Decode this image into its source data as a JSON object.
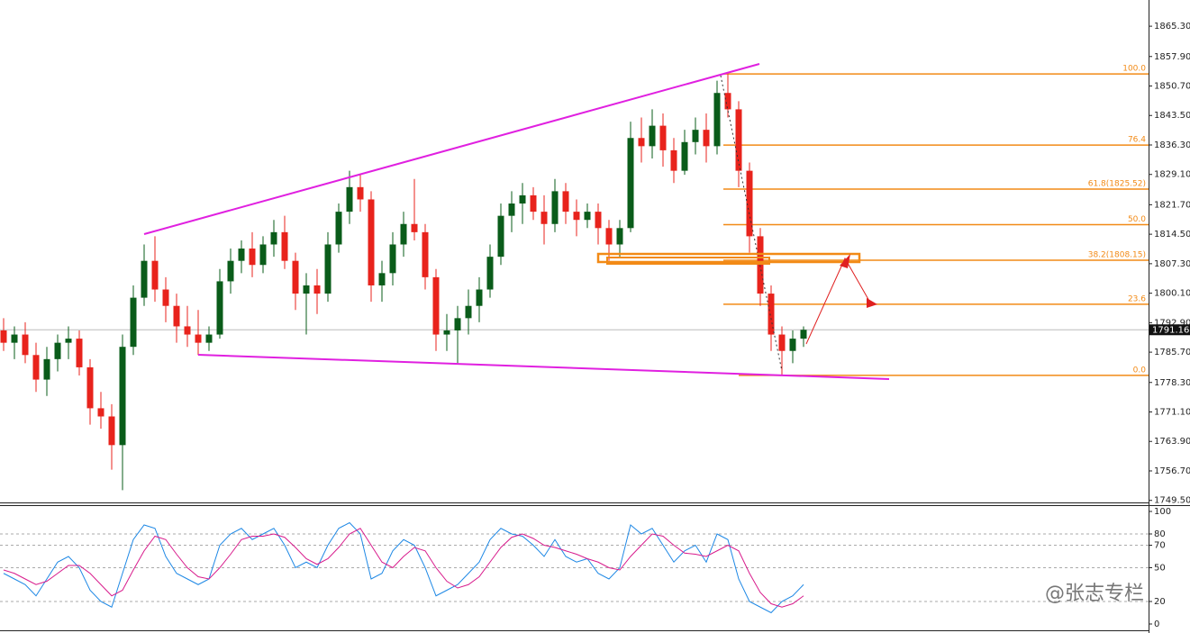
{
  "chart_data": [
    {
      "type": "candlestick",
      "open": [
        1791,
        1788,
        1790,
        1785,
        1779,
        1784,
        1788,
        1789,
        1782,
        1772,
        1770,
        1763,
        1787,
        1799,
        1808,
        1801,
        1797,
        1792,
        1790,
        1788,
        1790,
        1803,
        1808,
        1811,
        1807,
        1812,
        1815,
        1808,
        1800,
        1802,
        1800,
        1812,
        1820,
        1826,
        1823,
        1802,
        1805,
        1812,
        1817,
        1815,
        1804,
        1790,
        1791,
        1794,
        1797,
        1801,
        1809,
        1819,
        1822,
        1824,
        1820,
        1817,
        1825,
        1820,
        1818,
        1820,
        1816,
        1812,
        1816,
        1838,
        1836,
        1841,
        1835,
        1830,
        1837,
        1840,
        1836,
        1849,
        1845,
        1830,
        1814,
        1800,
        1790,
        1786,
        1789
      ],
      "high": [
        1794,
        1792,
        1793,
        1788,
        1787,
        1790,
        1792,
        1791,
        1784,
        1776,
        1773,
        1790,
        1802,
        1812,
        1814,
        1804,
        1800,
        1797,
        1796,
        1792,
        1806,
        1811,
        1813,
        1815,
        1814,
        1818,
        1819,
        1810,
        1805,
        1806,
        1815,
        1822,
        1830,
        1829,
        1825,
        1808,
        1815,
        1820,
        1828,
        1817,
        1806,
        1795,
        1797,
        1801,
        1804,
        1812,
        1822,
        1825,
        1827,
        1826,
        1824,
        1828,
        1827,
        1823,
        1822,
        1822,
        1818,
        1818,
        1842,
        1843,
        1845,
        1844,
        1838,
        1840,
        1843,
        1844,
        1852,
        1853.6,
        1847,
        1832,
        1816,
        1802,
        1792,
        1791,
        1792
      ],
      "low": [
        1786,
        1784,
        1783,
        1776,
        1775,
        1781,
        1784,
        1780,
        1768,
        1767,
        1757,
        1752,
        1785,
        1797,
        1798,
        1793,
        1788,
        1787,
        1785,
        1786,
        1789,
        1800,
        1805,
        1804,
        1805,
        1809,
        1806,
        1796,
        1790,
        1795,
        1798,
        1810,
        1817,
        1820,
        1798,
        1798,
        1802,
        1809,
        1813,
        1801,
        1786,
        1786,
        1783,
        1790,
        1793,
        1799,
        1807,
        1815,
        1817,
        1818,
        1812,
        1815,
        1817,
        1814,
        1816,
        1812,
        1808,
        1809,
        1815,
        1832,
        1833,
        1831,
        1827,
        1829,
        1834,
        1832,
        1834,
        1843,
        1826,
        1810,
        1797,
        1786,
        1780,
        1783,
        1787
      ],
      "close": [
        1788,
        1790,
        1785,
        1779,
        1784,
        1788,
        1789,
        1782,
        1772,
        1770,
        1763,
        1787,
        1799,
        1808,
        1801,
        1797,
        1792,
        1790,
        1788,
        1790,
        1803,
        1808,
        1811,
        1807,
        1812,
        1815,
        1808,
        1800,
        1802,
        1800,
        1812,
        1820,
        1826,
        1823,
        1802,
        1805,
        1812,
        1817,
        1815,
        1804,
        1790,
        1791,
        1794,
        1797,
        1801,
        1809,
        1819,
        1822,
        1824,
        1820,
        1817,
        1825,
        1820,
        1818,
        1820,
        1816,
        1812,
        1816,
        1838,
        1836,
        1841,
        1835,
        1830,
        1837,
        1840,
        1836,
        1849,
        1845,
        1830,
        1814,
        1800,
        1790,
        1786,
        1789,
        1791.16
      ],
      "up_color": "#0a5c1a",
      "down_color": "#e8231c",
      "ylim": [
        1749,
        1871.7
      ],
      "yticks": [
        {
          "value": 1749.5,
          "label": "1749.50"
        },
        {
          "value": 1756.7,
          "label": "1756.70"
        },
        {
          "value": 1763.9,
          "label": "1763.90"
        },
        {
          "value": 1771.1,
          "label": "1771.10"
        },
        {
          "value": 1778.3,
          "label": "1778.30"
        },
        {
          "value": 1785.7,
          "label": "1785.70"
        },
        {
          "value": 1792.9,
          "label": "1792.90"
        },
        {
          "value": 1800.1,
          "label": "1800.10"
        },
        {
          "value": 1807.3,
          "label": "1807.30"
        },
        {
          "value": 1814.5,
          "label": "1814.50"
        },
        {
          "value": 1821.7,
          "label": "1821.70"
        },
        {
          "value": 1829.1,
          "label": "1829.10"
        },
        {
          "value": 1836.3,
          "label": "1836.30"
        },
        {
          "value": 1843.5,
          "label": "1843.50"
        },
        {
          "value": 1850.7,
          "label": "1850.70"
        },
        {
          "value": 1857.9,
          "label": "1857.90"
        },
        {
          "value": 1865.3,
          "label": "1865.30"
        }
      ],
      "last_price": 1791.16,
      "fib_color": "#f28a16",
      "fib_levels": [
        {
          "ratio": 100,
          "label": "100.0",
          "price": 1853.63
        },
        {
          "ratio": 76.4,
          "label": "76.4",
          "price": 1836.26
        },
        {
          "ratio": 61.8,
          "label": "61.8(1825.52)",
          "price": 1825.52
        },
        {
          "ratio": 50,
          "label": "50.0",
          "price": 1816.83
        },
        {
          "ratio": 38.2,
          "label": "38.2(1808.15)",
          "price": 1808.15
        },
        {
          "ratio": 23.6,
          "label": "23.6",
          "price": 1797.4
        },
        {
          "ratio": 0,
          "label": "0.0",
          "price": 1780.03
        }
      ]
    },
    {
      "type": "line",
      "series": [
        {
          "color": "#1e88e5",
          "values": [
            45,
            40,
            35,
            25,
            40,
            55,
            60,
            50,
            30,
            20,
            15,
            45,
            75,
            88,
            85,
            60,
            45,
            40,
            35,
            40,
            70,
            80,
            85,
            75,
            80,
            85,
            70,
            50,
            55,
            50,
            70,
            85,
            90,
            80,
            40,
            45,
            65,
            75,
            70,
            50,
            25,
            30,
            35,
            45,
            55,
            75,
            85,
            80,
            78,
            70,
            60,
            75,
            60,
            55,
            58,
            45,
            40,
            50,
            88,
            80,
            85,
            70,
            55,
            65,
            70,
            55,
            80,
            75,
            40,
            20,
            15,
            10,
            20,
            25,
            35
          ]
        },
        {
          "color": "#d81b8c",
          "values": [
            48,
            45,
            40,
            35,
            38,
            45,
            52,
            52,
            45,
            35,
            25,
            30,
            48,
            65,
            78,
            75,
            62,
            50,
            42,
            40,
            50,
            62,
            75,
            78,
            78,
            80,
            77,
            68,
            58,
            53,
            58,
            68,
            80,
            85,
            70,
            55,
            50,
            60,
            68,
            65,
            50,
            38,
            32,
            35,
            42,
            55,
            68,
            77,
            80,
            76,
            70,
            68,
            65,
            62,
            58,
            55,
            50,
            48,
            60,
            70,
            80,
            78,
            70,
            63,
            62,
            60,
            65,
            70,
            65,
            45,
            28,
            18,
            15,
            18,
            25
          ]
        }
      ],
      "ylim": [
        0,
        100
      ],
      "yticks": [
        100,
        80,
        70,
        50,
        20,
        0
      ],
      "grid": true
    }
  ],
  "watermark": "@张志专栏"
}
